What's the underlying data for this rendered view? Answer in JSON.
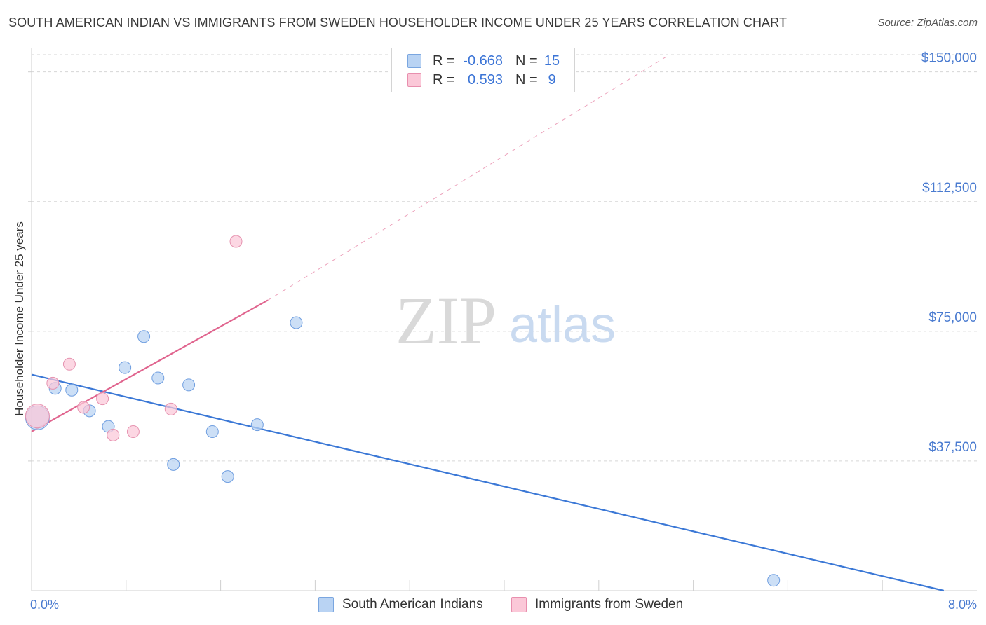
{
  "title": "SOUTH AMERICAN INDIAN VS IMMIGRANTS FROM SWEDEN HOUSEHOLDER INCOME UNDER 25 YEARS CORRELATION CHART",
  "source": "Source: ZipAtlas.com",
  "watermark": {
    "zip": "ZIP",
    "atlas": "atlas"
  },
  "legend": {
    "r_label": "R =",
    "n_label": "N =",
    "rows": [
      {
        "r": "-0.668",
        "n": "15",
        "color": "#b9d3f3",
        "border": "#7aa6e0"
      },
      {
        "r": "0.593",
        "n": "9",
        "color": "#fbc8d8",
        "border": "#e88fae"
      }
    ]
  },
  "bottom_legend": [
    {
      "label": "South American Indians",
      "color": "#b9d3f3",
      "border": "#7aa6e0"
    },
    {
      "label": "Immigrants from Sweden",
      "color": "#fbc8d8",
      "border": "#e88fae"
    }
  ],
  "chart_data": {
    "type": "scatter",
    "title": "SOUTH AMERICAN INDIAN VS IMMIGRANTS FROM SWEDEN HOUSEHOLDER INCOME UNDER 25 YEARS CORRELATION CHART",
    "xlabel": "",
    "ylabel": "Householder Income Under 25 years",
    "xlim": [
      0,
      8
    ],
    "ylim": [
      0,
      155000
    ],
    "x_tick_labels": [
      {
        "x": 0,
        "label": "0.0%"
      },
      {
        "x": 8,
        "label": "8.0%"
      }
    ],
    "x_minor_ticks": [
      0.8,
      1.6,
      2.4,
      3.2,
      4.0,
      4.8,
      5.6,
      6.4,
      7.2
    ],
    "y_ticks": [
      {
        "y": 150000,
        "label": "$150,000"
      },
      {
        "y": 112500,
        "label": "$112,500"
      },
      {
        "y": 75000,
        "label": "$75,000"
      },
      {
        "y": 37500,
        "label": "$37,500"
      }
    ],
    "grid": true,
    "series": [
      {
        "name": "South American Indians",
        "color": "#b9d3f3",
        "stroke": "#6f9ee0",
        "line_color": "#3b78d6",
        "points": [
          {
            "x": 0.05,
            "y": 50000,
            "size": "large"
          },
          {
            "x": 0.2,
            "y": 58500
          },
          {
            "x": 0.34,
            "y": 58000
          },
          {
            "x": 0.49,
            "y": 52000
          },
          {
            "x": 0.65,
            "y": 47500
          },
          {
            "x": 0.79,
            "y": 64500
          },
          {
            "x": 0.95,
            "y": 73500
          },
          {
            "x": 1.07,
            "y": 61500
          },
          {
            "x": 1.2,
            "y": 36500
          },
          {
            "x": 1.33,
            "y": 59500
          },
          {
            "x": 1.53,
            "y": 46000
          },
          {
            "x": 1.66,
            "y": 33000
          },
          {
            "x": 1.91,
            "y": 48000
          },
          {
            "x": 2.24,
            "y": 77500
          },
          {
            "x": 6.28,
            "y": 3000
          }
        ],
        "trend": {
          "x0": 0,
          "y0": 62500,
          "x1": 7.72,
          "y1": 0
        }
      },
      {
        "name": "Immigrants from Sweden",
        "color": "#fbc8d8",
        "stroke": "#e693b0",
        "line_color": "#e0648e",
        "points": [
          {
            "x": 0.05,
            "y": 50500,
            "size": "large"
          },
          {
            "x": 0.18,
            "y": 60000
          },
          {
            "x": 0.32,
            "y": 65500
          },
          {
            "x": 0.44,
            "y": 53000
          },
          {
            "x": 0.6,
            "y": 55500
          },
          {
            "x": 0.69,
            "y": 45000
          },
          {
            "x": 0.86,
            "y": 46000
          },
          {
            "x": 1.18,
            "y": 52500
          },
          {
            "x": 1.73,
            "y": 101000
          }
        ],
        "trend": {
          "x0": 0,
          "y0": 46000,
          "x1": 2.0,
          "y1": 84000
        },
        "trend_extension": {
          "x0": 2.0,
          "y0": 84000,
          "x1": 5.4,
          "y1": 155000
        }
      }
    ]
  }
}
